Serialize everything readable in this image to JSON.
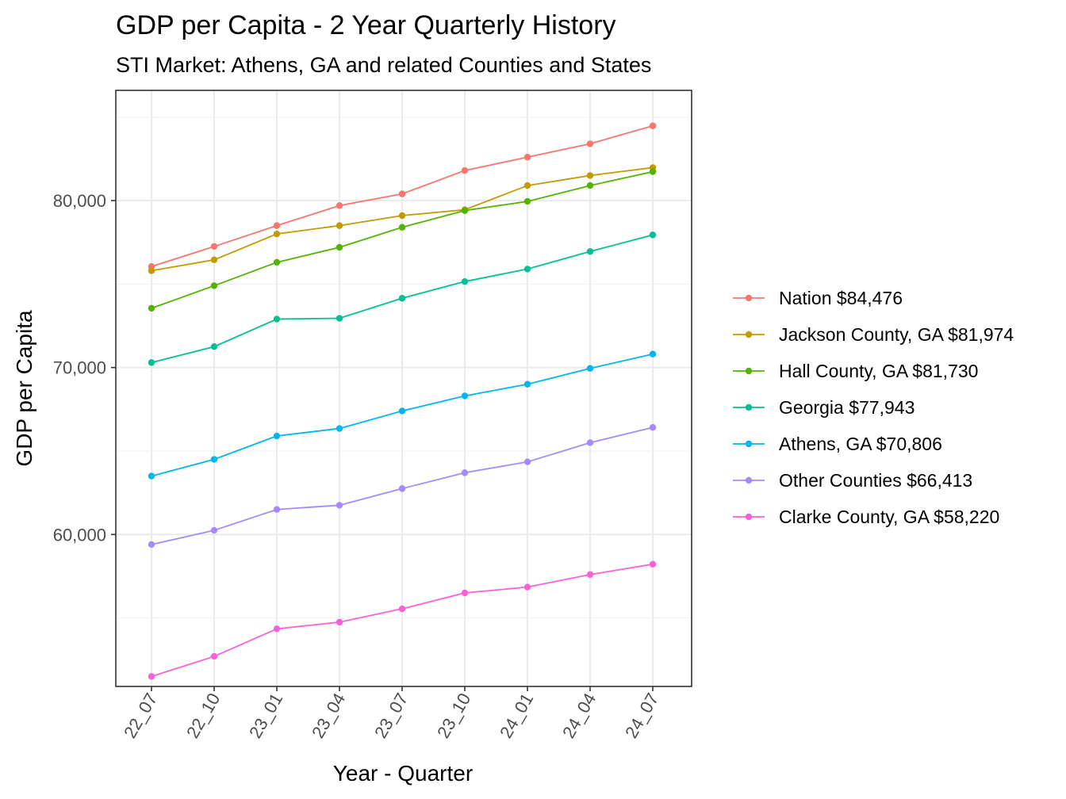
{
  "chart_data": {
    "type": "line",
    "title": "GDP per Capita - 2 Year Quarterly History",
    "subtitle": "STI Market: Athens, GA and related Counties and States",
    "xlabel": "Year - Quarter",
    "ylabel": "GDP per Capita",
    "categories": [
      "22_07",
      "22_10",
      "23_01",
      "23_04",
      "23_07",
      "23_10",
      "24_01",
      "24_04",
      "24_07"
    ],
    "ylim": [
      50900,
      86600
    ],
    "yticks": [
      60000,
      70000,
      80000
    ],
    "ytick_labels": [
      "60,000",
      "70,000",
      "80,000"
    ],
    "grid": true,
    "legend_position": "right",
    "series": [
      {
        "name": "Nation $84,476",
        "color": "#F8766D",
        "values": [
          76050,
          77250,
          78500,
          79700,
          80400,
          81800,
          82600,
          83400,
          84476
        ]
      },
      {
        "name": "Jackson County, GA $81,974",
        "color": "#C49A00",
        "values": [
          75800,
          76450,
          78000,
          78500,
          79100,
          79450,
          80900,
          81500,
          81974
        ]
      },
      {
        "name": "Hall County, GA $81,730",
        "color": "#53B400",
        "values": [
          73550,
          74900,
          76300,
          77200,
          78400,
          79400,
          79950,
          80900,
          81730
        ]
      },
      {
        "name": "Georgia $77,943",
        "color": "#00C094",
        "values": [
          70300,
          71250,
          72900,
          72950,
          74150,
          75150,
          75900,
          76950,
          77943
        ]
      },
      {
        "name": "Athens, GA $70,806",
        "color": "#00B6EB",
        "values": [
          63500,
          64500,
          65900,
          66350,
          67400,
          68300,
          69000,
          69950,
          70806
        ]
      },
      {
        "name": "Other Counties $66,413",
        "color": "#A58AFF",
        "values": [
          59400,
          60250,
          61500,
          61750,
          62750,
          63700,
          64350,
          65500,
          66413
        ]
      },
      {
        "name": "Clarke County, GA $58,220",
        "color": "#FB61D7",
        "values": [
          51500,
          52700,
          54350,
          54750,
          55550,
          56500,
          56850,
          57600,
          58220
        ]
      }
    ]
  }
}
